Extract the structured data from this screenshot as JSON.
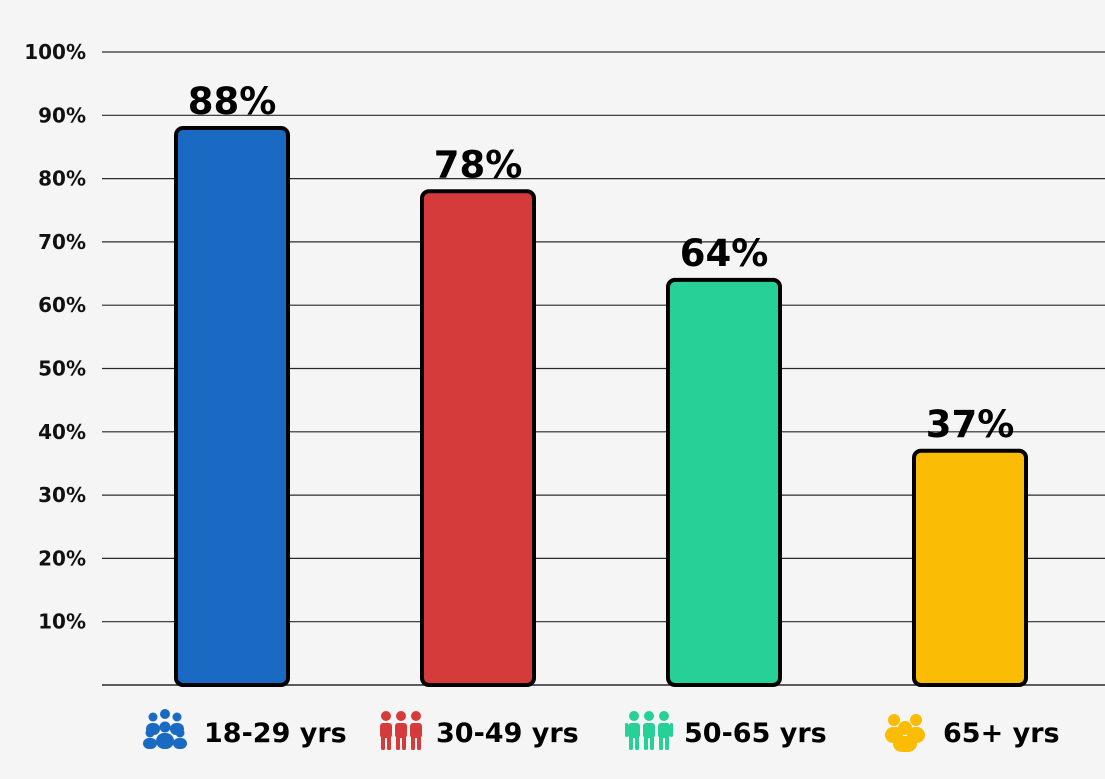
{
  "chart_data": {
    "type": "bar",
    "categories": [
      "18-29 yrs",
      "30-49 yrs",
      "50-65 yrs",
      "65+ yrs"
    ],
    "values": [
      88,
      78,
      64,
      37
    ],
    "value_labels": [
      "88%",
      "78%",
      "64%",
      "37%"
    ],
    "colors": [
      "#1a6ac4",
      "#d63b3b",
      "#26d096",
      "#fbbc05"
    ],
    "icons": [
      "group-of-people-icon",
      "group-of-people-icon",
      "group-of-people-icon",
      "group-of-people-icon"
    ],
    "ylim": [
      0,
      100
    ],
    "y_ticks": [
      10,
      20,
      30,
      40,
      50,
      60,
      70,
      80,
      90,
      100
    ],
    "y_tick_labels": [
      "10%",
      "20%",
      "30%",
      "40%",
      "50%",
      "60%",
      "70%",
      "80%",
      "90%",
      "100%"
    ],
    "grid": true,
    "title": "",
    "xlabel": "",
    "ylabel": ""
  }
}
